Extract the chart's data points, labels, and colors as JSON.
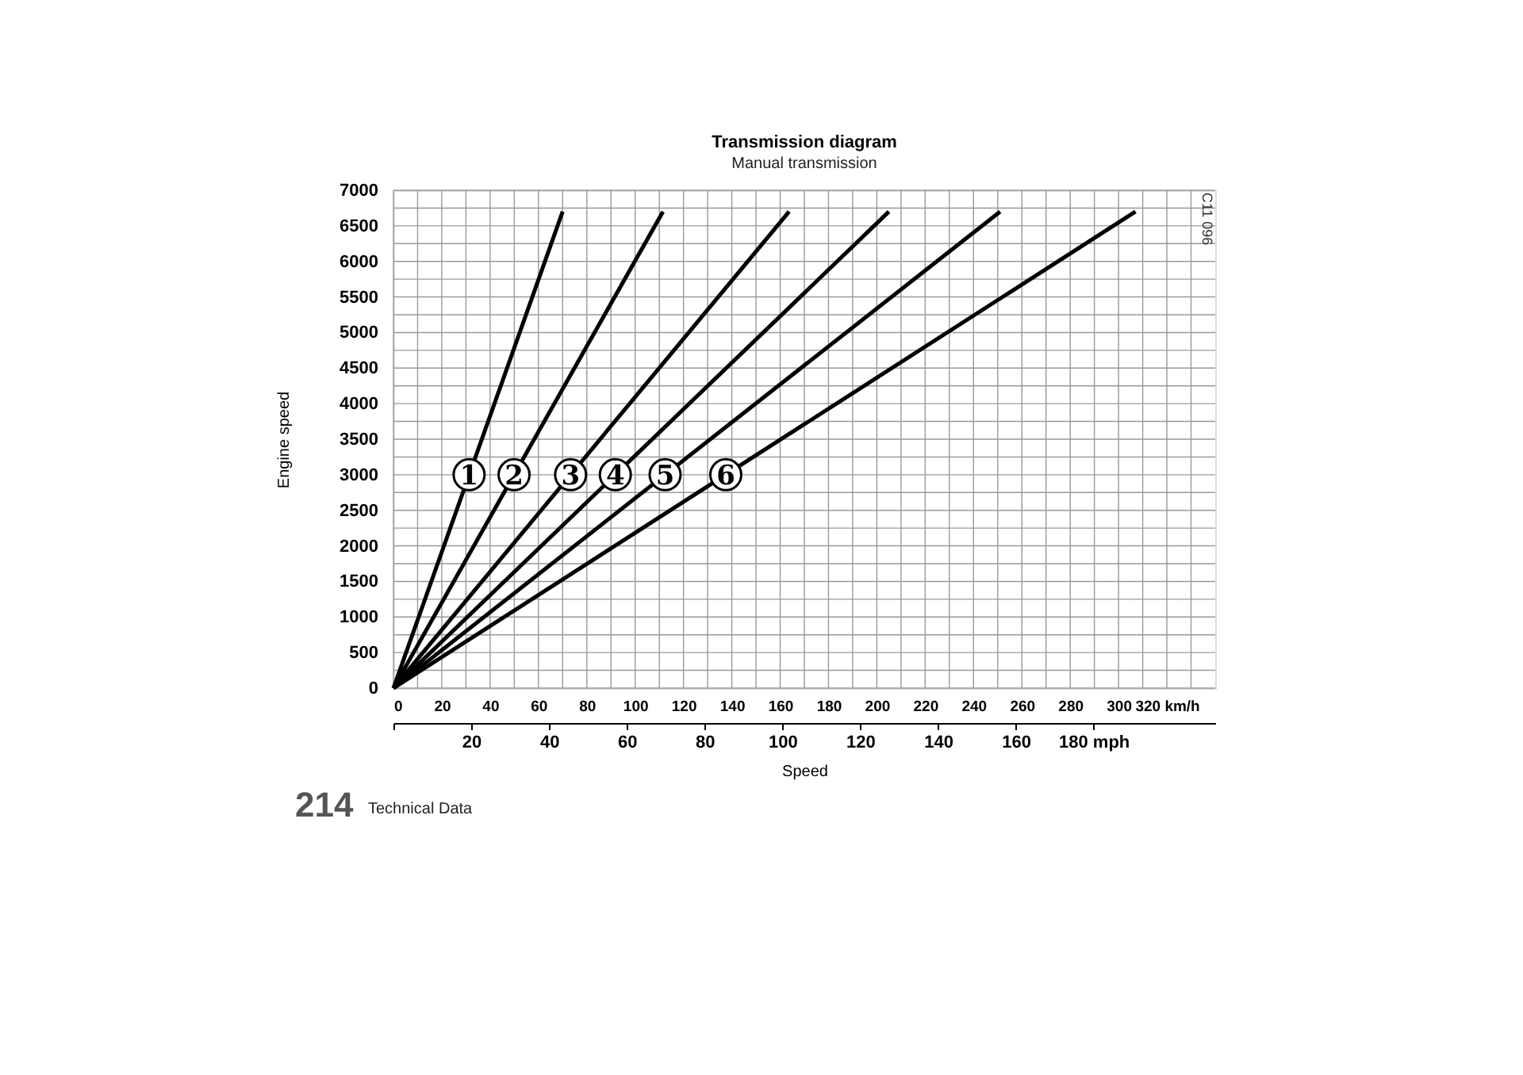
{
  "chart_data": {
    "type": "line",
    "title": "Transmission diagram",
    "subtitle": "Manual transmission",
    "xlabel": "Speed",
    "ylabel": "Engine speed",
    "xlim": [
      0,
      340
    ],
    "xticks": [
      0,
      20,
      40,
      60,
      80,
      100,
      120,
      140,
      160,
      180,
      200,
      220,
      240,
      260,
      280,
      300,
      {
        "value": 320,
        "label": "320 km/h"
      }
    ],
    "ylim": [
      0,
      7000
    ],
    "yticks": [
      0,
      500,
      1000,
      1500,
      2000,
      2500,
      3000,
      3500,
      4000,
      4500,
      5000,
      5500,
      6000,
      6500,
      7000
    ],
    "x2lim": [
      0,
      211.27
    ],
    "x2ticks": [
      {
        "value": 0,
        "label": null
      },
      20,
      40,
      60,
      80,
      100,
      120,
      140,
      160,
      {
        "value": 180,
        "label": "180 mph"
      }
    ],
    "grid": true,
    "line_style": "solid",
    "series": [
      {
        "color": "#000000",
        "x": [
          0,
          70
        ],
        "values": [
          0,
          6700
        ]
      },
      {
        "color": "#000000",
        "x": [
          0,
          111.5
        ],
        "values": [
          0,
          6700
        ]
      },
      {
        "color": "#000000",
        "x": [
          0,
          163.7
        ],
        "values": [
          0,
          6700
        ]
      },
      {
        "color": "#000000",
        "x": [
          0,
          205
        ],
        "values": [
          0,
          6700
        ]
      },
      {
        "color": "#000000",
        "x": [
          0,
          251
        ],
        "values": [
          0,
          6700
        ]
      },
      {
        "color": "#000000",
        "x": [
          0,
          307
        ],
        "values": [
          0,
          6700
        ]
      }
    ],
    "annotations": [
      {
        "text": "1",
        "x": 31.3,
        "y": 3000
      },
      {
        "text": "2",
        "x": 49.9,
        "y": 3000
      },
      {
        "text": "3",
        "x": 73.3,
        "y": 3000
      },
      {
        "text": "4",
        "x": 91.8,
        "y": 3000
      },
      {
        "text": "5",
        "x": 112.4,
        "y": 3000
      },
      {
        "text": "6",
        "x": 137.5,
        "y": 3000
      },
      "C11 096",
      "214",
      "Technical Data"
    ]
  }
}
